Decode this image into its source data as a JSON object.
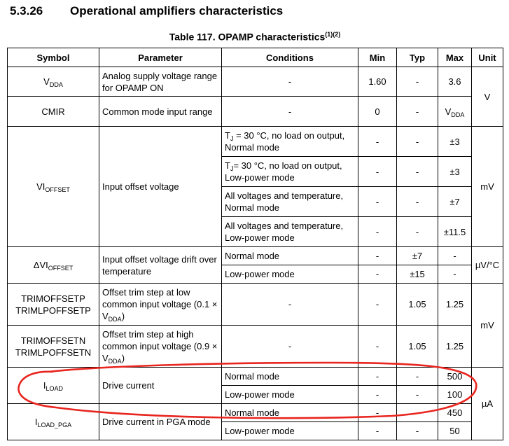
{
  "section": {
    "number": "5.3.26",
    "title": "Operational amplifiers characteristics"
  },
  "table": {
    "caption": "Table 117. OPAMP characteristics",
    "caption_refs": "(1)(2)",
    "headers": [
      "Symbol",
      "Parameter",
      "Conditions",
      "Min",
      "Typ",
      "Max",
      "Unit"
    ],
    "rows": {
      "vdda": {
        "symbol_main": "V",
        "symbol_sub": "DDA",
        "parameter": "Analog supply voltage range for OPAMP ON",
        "conditions": "-",
        "min": "1.60",
        "typ": "-",
        "max": "3.6"
      },
      "cmir": {
        "symbol": "CMIR",
        "parameter": "Common mode input range",
        "conditions": "-",
        "min": "0",
        "typ": "-",
        "max_main": "V",
        "max_sub": "DDA"
      },
      "unit_v": "V",
      "vioffset": {
        "symbol_main": "VI",
        "symbol_sub": "OFFSET",
        "parameter": "Input offset voltage",
        "unit": "mV",
        "r1": {
          "cond_pre": "T",
          "cond_sub": "J",
          "cond_post": " = 30 °C, no load on output, Normal mode",
          "min": "-",
          "typ": "-",
          "max": "±3"
        },
        "r2": {
          "cond_pre": "T",
          "cond_sub": "J",
          "cond_post": "= 30 °C, no load on output, Low-power mode",
          "min": "-",
          "typ": "-",
          "max": "±3"
        },
        "r3": {
          "conditions": "All voltages and temperature, Normal mode",
          "min": "-",
          "typ": "-",
          "max": "±7"
        },
        "r4": {
          "conditions": "All voltages and temperature, Low-power mode",
          "min": "-",
          "typ": "-",
          "max": "±11.5"
        }
      },
      "dvioffset": {
        "symbol_main": "ΔVI",
        "symbol_sub": "OFFSET",
        "parameter": "Input offset voltage drift over temperature",
        "unit": "µV/°C",
        "r1": {
          "conditions": "Normal mode",
          "min": "-",
          "typ": "±7",
          "max": "-"
        },
        "r2": {
          "conditions": "Low-power mode",
          "min": "-",
          "typ": "±15",
          "max": "-"
        }
      },
      "trimp": {
        "symbol_1": "TRIMOFFSETP",
        "symbol_2": "TRIMLPOFFSETP",
        "parameter": "Offset trim step at low common input voltage (0.1 × V",
        "param_sub": "DDA",
        "param_post": ")",
        "conditions": "-",
        "min": "-",
        "typ": "1.05",
        "max": "1.25"
      },
      "trimn": {
        "symbol_1": "TRIMOFFSETN",
        "symbol_2": "TRIMLPOFFSETN",
        "parameter": "Offset trim step at high common input voltage (0.9 × V",
        "param_sub": "DDA",
        "param_post": ")",
        "conditions": "-",
        "min": "-",
        "typ": "1.05",
        "max": "1.25"
      },
      "unit_mv": "mV",
      "iload": {
        "symbol_main": "I",
        "symbol_sub": "LOAD",
        "parameter": "Drive current",
        "r1": {
          "conditions": "Normal mode",
          "min": "-",
          "typ": "-",
          "max": "500"
        },
        "r2": {
          "conditions": "Low-power mode",
          "min": "-",
          "typ": "-",
          "max": "100"
        }
      },
      "unit_ua": "µA",
      "iloadpga": {
        "symbol_main": "I",
        "symbol_sub": "LOAD_PGA",
        "parameter": "Drive current in PGA mode",
        "r1": {
          "conditions": "Normal mode",
          "min": "-",
          "typ": "-",
          "max": "450"
        },
        "r2": {
          "conditions": "Low-power mode",
          "min": "-",
          "typ": "-",
          "max": "50"
        }
      }
    }
  },
  "annotation_color": "#e8251f"
}
